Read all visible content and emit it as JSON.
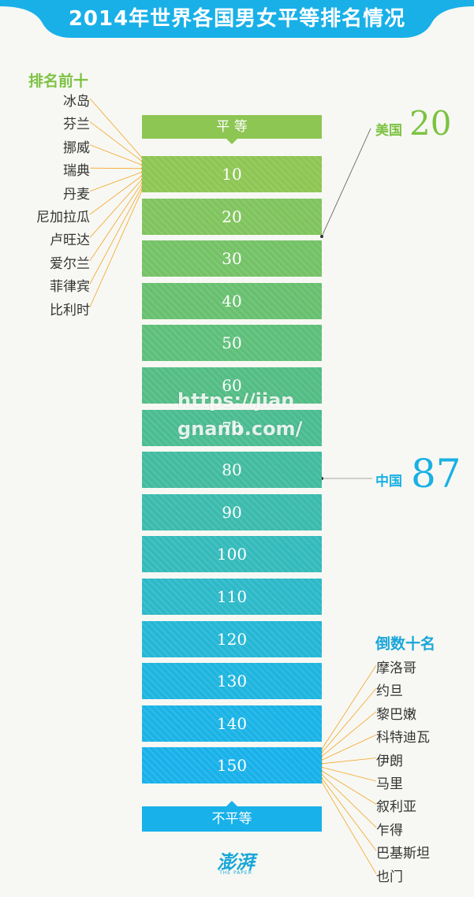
{
  "title": "2014年世界各国男女平等排名情况",
  "top_section": {
    "title": "排名前十",
    "countries": [
      "冰岛",
      "芬兰",
      "挪威",
      "瑞典",
      "丹麦",
      "尼加拉瓜",
      "卢旺达",
      "爱尔兰",
      "菲律宾",
      "比利时"
    ]
  },
  "bottom_section": {
    "title": "倒数十名",
    "countries": [
      "摩洛哥",
      "约旦",
      "黎巴嫩",
      "科特迪瓦",
      "伊朗",
      "马里",
      "叙利亚",
      "乍得",
      "巴基斯坦",
      "也门"
    ]
  },
  "scale": {
    "top_label": "平 等",
    "bottom_label": "不平等",
    "bars": [
      {
        "label": "10",
        "color": "#8dc653"
      },
      {
        "label": "20",
        "color": "#80c45d"
      },
      {
        "label": "30",
        "color": "#74c266"
      },
      {
        "label": "40",
        "color": "#68c06f"
      },
      {
        "label": "50",
        "color": "#5dbf79"
      },
      {
        "label": "60",
        "color": "#53bd85"
      },
      {
        "label": "70",
        "color": "#4bbc92"
      },
      {
        "label": "80",
        "color": "#42bb9f"
      },
      {
        "label": "90",
        "color": "#3bbbad"
      },
      {
        "label": "100",
        "color": "#34babb"
      },
      {
        "label": "110",
        "color": "#2cb9c8"
      },
      {
        "label": "120",
        "color": "#24b7d5"
      },
      {
        "label": "130",
        "color": "#1eb5df"
      },
      {
        "label": "140",
        "color": "#1ab3e6"
      },
      {
        "label": "150",
        "color": "#18b1ea"
      }
    ],
    "top_color": "#8dc653",
    "bottom_color": "#18b1ea"
  },
  "callouts": {
    "usa": {
      "name": "美国",
      "rank": "20",
      "color": "#7cc242"
    },
    "china": {
      "name": "中国",
      "rank": "87",
      "color": "#1ab0e4"
    }
  },
  "watermark": "https://jiangnanb.com/",
  "logo": {
    "mark": "澎湃",
    "sub": "THE PAPER"
  },
  "colors": {
    "banner": "#19b0e8",
    "top_title": "#7cc242",
    "bottom_title": "#1aa6d9",
    "leader_line": "#f4a52a"
  }
}
